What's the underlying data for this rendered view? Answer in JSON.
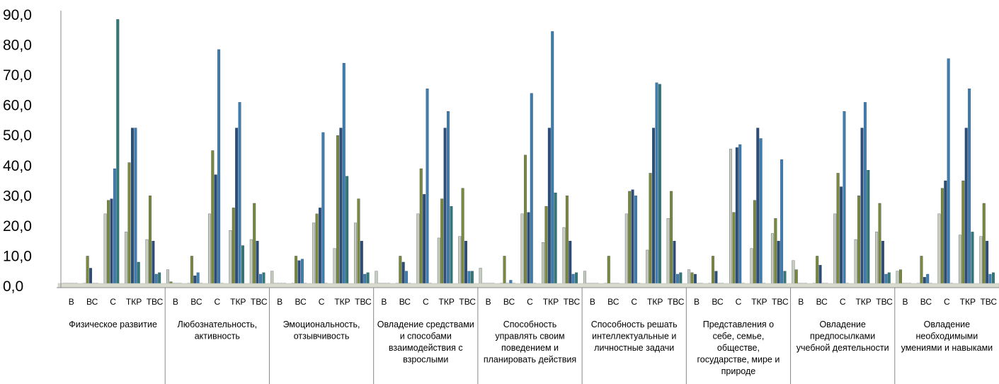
{
  "chart_data": {
    "type": "bar",
    "title": "",
    "xlabel": "",
    "ylabel": "",
    "ylim": [
      0,
      90
    ],
    "yticks": [
      "0,0",
      "10,0",
      "20,0",
      "30,0",
      "40,0",
      "50,0",
      "60,0",
      "70,0",
      "80,0",
      "90,0"
    ],
    "grid": false,
    "legend": "none",
    "subcategories": [
      "В",
      "ВС",
      "С",
      "ТКР",
      "ТВС"
    ],
    "bar_colors": [
      "#c8ccbc",
      "#7a8a3a",
      "#2b4d7a",
      "#3d7fb3",
      "#2f7a78"
    ],
    "groups": [
      {
        "label": "Физическое развитие",
        "values": [
          [
            1,
            1,
            1,
            1,
            1
          ],
          [
            1,
            10,
            6,
            1,
            1
          ],
          [
            24,
            28.5,
            29,
            39,
            88.5
          ],
          [
            18,
            41,
            52.5,
            52.5,
            8
          ],
          [
            15.5,
            30,
            15,
            4,
            4.5
          ]
        ]
      },
      {
        "label": "Любознательность, активность",
        "values": [
          [
            5.5,
            1.5,
            1,
            1,
            1
          ],
          [
            1,
            10,
            3.5,
            4.5,
            1
          ],
          [
            24,
            45,
            37,
            78.5,
            1
          ],
          [
            18.5,
            26,
            52.5,
            61,
            13.5
          ],
          [
            15.5,
            27.5,
            15,
            4,
            4.5
          ]
        ]
      },
      {
        "label": "Эмоциональность, отзывчивость",
        "values": [
          [
            5,
            1,
            1,
            1,
            1
          ],
          [
            1,
            10,
            8.5,
            9,
            1
          ],
          [
            21,
            24,
            26,
            51,
            1
          ],
          [
            12.5,
            50,
            52.5,
            74,
            36.5
          ],
          [
            21,
            29,
            15,
            4,
            4.5
          ]
        ]
      },
      {
        "label": "Овладение средствами и способами взаимодействия с взрослыми",
        "values": [
          [
            5,
            1,
            1,
            1,
            1
          ],
          [
            1,
            10,
            8,
            5,
            1
          ],
          [
            24,
            39,
            30.5,
            65.5,
            1
          ],
          [
            16,
            29,
            52.5,
            58,
            26.5
          ],
          [
            16.5,
            32.5,
            15,
            5,
            5
          ]
        ]
      },
      {
        "label": "Способность управлять своим поведением и планировать действия",
        "values": [
          [
            6,
            1,
            1,
            1,
            1
          ],
          [
            1,
            10,
            1,
            2,
            1
          ],
          [
            24,
            43.5,
            24.5,
            64,
            1
          ],
          [
            14.5,
            26.5,
            52.5,
            84.5,
            31
          ],
          [
            19.5,
            30,
            15,
            4,
            4.5
          ]
        ]
      },
      {
        "label": "Способность решать интеллектуальные и личностные задачи",
        "values": [
          [
            5,
            1,
            1,
            1,
            1
          ],
          [
            1,
            10,
            1,
            1,
            1
          ],
          [
            24,
            31.5,
            32,
            30,
            1
          ],
          [
            12,
            37.5,
            52.5,
            67.5,
            67
          ],
          [
            22.5,
            31.5,
            15,
            4,
            4.5
          ]
        ]
      },
      {
        "label": "Представления о себе, семье, обществе, государстве, мире и природе",
        "values": [
          [
            5.5,
            4.5,
            4,
            1,
            1
          ],
          [
            1,
            10,
            5,
            1,
            1
          ],
          [
            45.5,
            24.5,
            46,
            47,
            1
          ],
          [
            12.5,
            28.5,
            52.5,
            49,
            1
          ],
          [
            17.5,
            22.5,
            15,
            42,
            5
          ]
        ]
      },
      {
        "label": "Овладение предпосылками учебной деятельности",
        "values": [
          [
            8.5,
            5.5,
            1,
            1,
            1
          ],
          [
            1,
            10,
            7,
            1,
            1
          ],
          [
            24,
            37.5,
            33,
            58,
            1
          ],
          [
            15.5,
            30,
            52.5,
            61,
            38.5
          ],
          [
            18,
            27.5,
            15,
            4,
            4.5
          ]
        ]
      },
      {
        "label": "Овладение необходимыми умениями и навыками",
        "values": [
          [
            5,
            5.5,
            1,
            1,
            1
          ],
          [
            1,
            10,
            3,
            4,
            1
          ],
          [
            24,
            32.5,
            35,
            75.5,
            1
          ],
          [
            17,
            35,
            52.5,
            65.5,
            18
          ],
          [
            16.5,
            27.5,
            15,
            4,
            4.5
          ]
        ]
      }
    ]
  }
}
